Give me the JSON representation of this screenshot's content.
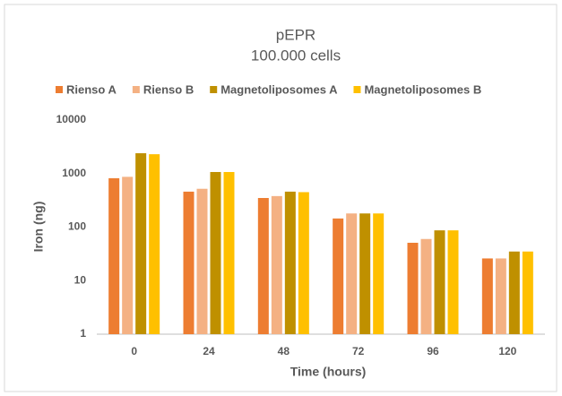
{
  "chart_data": {
    "type": "bar",
    "title": "pEPR",
    "subtitle": "100.000 cells",
    "x_label": "Time (hours)",
    "y_label": "Iron (ng)",
    "categories": [
      "0",
      "24",
      "48",
      "72",
      "96",
      "120"
    ],
    "series": [
      {
        "name": "Rienso A",
        "color": "#ed7d31",
        "values": [
          820,
          460,
          350,
          145,
          51,
          26
        ]
      },
      {
        "name": "Rienso B",
        "color": "#f4b183",
        "values": [
          870,
          520,
          380,
          180,
          60,
          26
        ]
      },
      {
        "name": "Magnetoliposomes A",
        "color": "#bf9000",
        "values": [
          2400,
          1070,
          460,
          180,
          87,
          35
        ]
      },
      {
        "name": "Magnetoliposomes B",
        "color": "#ffc000",
        "values": [
          2300,
          1070,
          450,
          180,
          87,
          35
        ]
      }
    ],
    "ylim": [
      1,
      10000
    ],
    "yticks": [
      1,
      10,
      100,
      1000,
      10000
    ],
    "log_scale": true,
    "grid": false,
    "legend": "top"
  }
}
